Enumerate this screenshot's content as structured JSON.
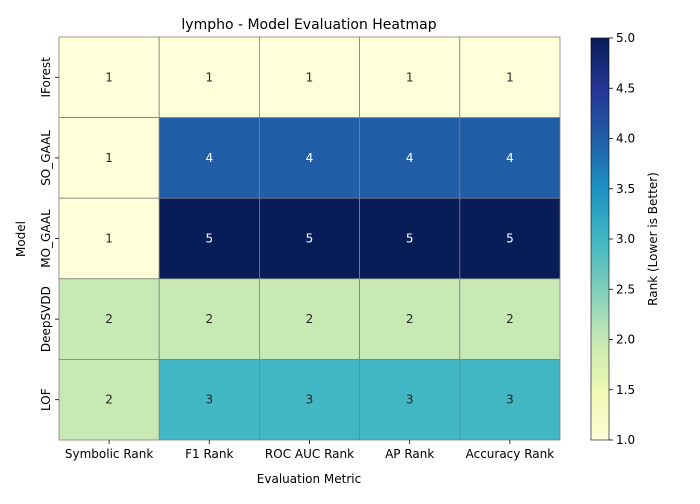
{
  "chart_data": {
    "type": "heatmap",
    "title": "lympho - Model Evaluation Heatmap",
    "xlabel": "Evaluation Metric",
    "ylabel": "Model",
    "x_categories": [
      "Symbolic Rank",
      "F1 Rank",
      "ROC AUC Rank",
      "AP Rank",
      "Accuracy Rank"
    ],
    "y_categories": [
      "IForest",
      "SO_GAAL",
      "MO_GAAL",
      "DeepSVDD",
      "LOF"
    ],
    "values": [
      [
        1,
        1,
        1,
        1,
        1
      ],
      [
        1,
        4,
        4,
        4,
        4
      ],
      [
        1,
        5,
        5,
        5,
        5
      ],
      [
        2,
        2,
        2,
        2,
        2
      ],
      [
        2,
        3,
        3,
        3,
        3
      ]
    ],
    "colorbar": {
      "label": "Rank (Lower is Better)",
      "range": [
        1,
        5
      ],
      "ticks": [
        "1.0",
        "1.5",
        "2.0",
        "2.5",
        "3.0",
        "3.5",
        "4.0",
        "4.5",
        "5.0"
      ],
      "colormap": "YlGnBu"
    }
  }
}
